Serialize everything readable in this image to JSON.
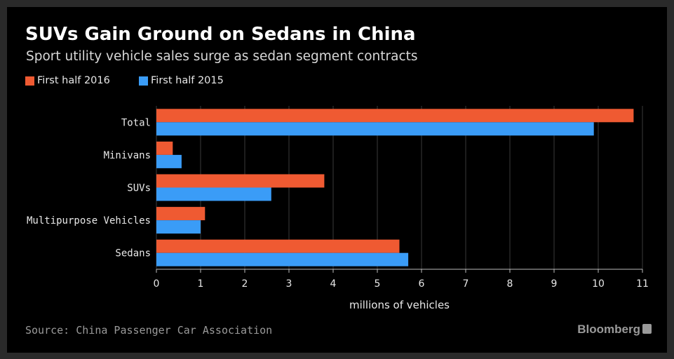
{
  "chart_data": {
    "type": "bar",
    "orientation": "horizontal",
    "title": "SUVs Gain Ground on Sedans in China",
    "subtitle": "Sport utility vehicle sales surge as sedan segment contracts",
    "categories": [
      "Total",
      "Minivans",
      "SUVs",
      "Multipurpose Vehicles",
      "Sedans"
    ],
    "series": [
      {
        "name": "First half 2016",
        "color": "#ef5a32",
        "values": [
          10.8,
          0.37,
          3.8,
          1.1,
          5.5
        ]
      },
      {
        "name": "First half 2015",
        "color": "#3a9cf7",
        "values": [
          9.9,
          0.57,
          2.6,
          1.0,
          5.7
        ]
      }
    ],
    "xlabel": "millions of vehicles",
    "ylabel": "",
    "xlim": [
      0,
      11
    ],
    "xticks": [
      0,
      1,
      2,
      3,
      4,
      5,
      6,
      7,
      8,
      9,
      10,
      11
    ],
    "grid": true,
    "legend_position": "top-left"
  },
  "footer": {
    "source": "Source: China Passenger Car Association",
    "brand": "Bloomberg"
  }
}
